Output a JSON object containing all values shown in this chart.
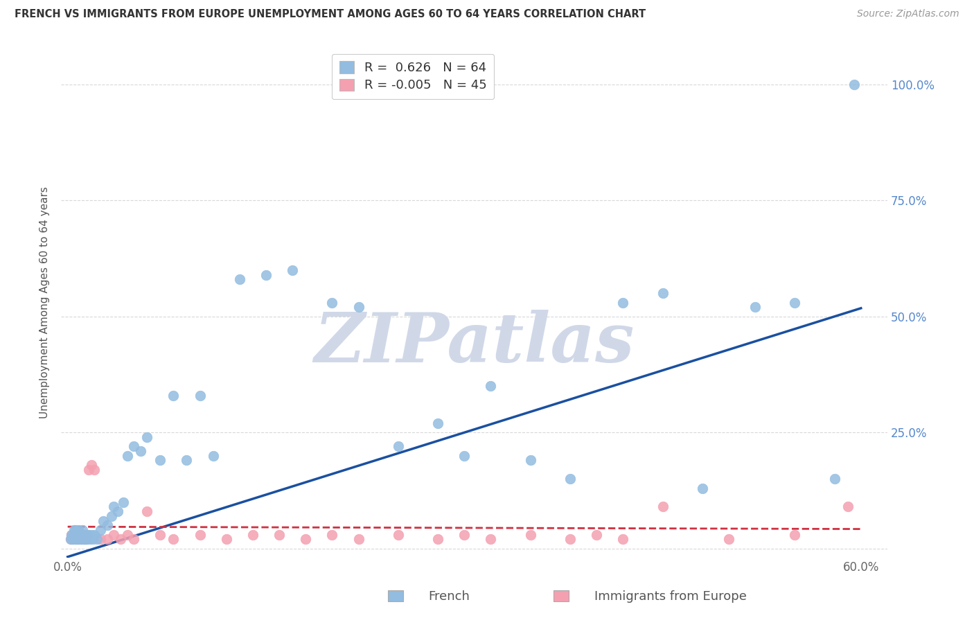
{
  "title": "FRENCH VS IMMIGRANTS FROM EUROPE UNEMPLOYMENT AMONG AGES 60 TO 64 YEARS CORRELATION CHART",
  "source": "Source: ZipAtlas.com",
  "ylabel": "Unemployment Among Ages 60 to 64 years",
  "xlim": [
    -0.005,
    0.62
  ],
  "ylim": [
    -0.02,
    1.08
  ],
  "french_R": 0.626,
  "french_N": 64,
  "immigrants_R": -0.005,
  "immigrants_N": 45,
  "french_color": "#92bce0",
  "immigrants_color": "#f4a0b0",
  "french_line_color": "#1a50a0",
  "immigrants_line_color": "#d03040",
  "background_color": "#ffffff",
  "grid_color": "#d8d8d8",
  "watermark_text": "ZIPatlas",
  "watermark_color": "#d0d8e8",
  "french_x": [
    0.002,
    0.003,
    0.004,
    0.005,
    0.005,
    0.006,
    0.006,
    0.007,
    0.007,
    0.008,
    0.008,
    0.009,
    0.009,
    0.01,
    0.01,
    0.011,
    0.011,
    0.012,
    0.012,
    0.013,
    0.013,
    0.014,
    0.015,
    0.015,
    0.016,
    0.017,
    0.018,
    0.019,
    0.02,
    0.022,
    0.025,
    0.027,
    0.03,
    0.033,
    0.035,
    0.038,
    0.042,
    0.045,
    0.05,
    0.055,
    0.06,
    0.07,
    0.08,
    0.09,
    0.1,
    0.11,
    0.13,
    0.15,
    0.17,
    0.2,
    0.22,
    0.25,
    0.28,
    0.3,
    0.32,
    0.35,
    0.38,
    0.42,
    0.45,
    0.48,
    0.52,
    0.55,
    0.58,
    0.595
  ],
  "french_y": [
    0.02,
    0.03,
    0.02,
    0.04,
    0.03,
    0.02,
    0.04,
    0.03,
    0.02,
    0.04,
    0.02,
    0.03,
    0.02,
    0.03,
    0.02,
    0.04,
    0.02,
    0.03,
    0.02,
    0.03,
    0.02,
    0.02,
    0.03,
    0.02,
    0.03,
    0.02,
    0.03,
    0.02,
    0.03,
    0.02,
    0.04,
    0.06,
    0.05,
    0.07,
    0.09,
    0.08,
    0.1,
    0.2,
    0.22,
    0.21,
    0.24,
    0.19,
    0.33,
    0.19,
    0.33,
    0.2,
    0.58,
    0.59,
    0.6,
    0.53,
    0.52,
    0.22,
    0.27,
    0.2,
    0.35,
    0.19,
    0.15,
    0.53,
    0.55,
    0.13,
    0.52,
    0.53,
    0.15,
    1.0
  ],
  "immigrants_x": [
    0.002,
    0.003,
    0.004,
    0.005,
    0.006,
    0.007,
    0.008,
    0.009,
    0.01,
    0.011,
    0.012,
    0.013,
    0.014,
    0.015,
    0.016,
    0.018,
    0.02,
    0.025,
    0.03,
    0.035,
    0.04,
    0.045,
    0.05,
    0.06,
    0.07,
    0.08,
    0.1,
    0.12,
    0.14,
    0.16,
    0.18,
    0.2,
    0.22,
    0.25,
    0.28,
    0.3,
    0.32,
    0.35,
    0.38,
    0.4,
    0.42,
    0.45,
    0.5,
    0.55,
    0.59
  ],
  "immigrants_y": [
    0.02,
    0.03,
    0.02,
    0.03,
    0.02,
    0.03,
    0.02,
    0.03,
    0.02,
    0.03,
    0.02,
    0.03,
    0.02,
    0.03,
    0.17,
    0.18,
    0.17,
    0.02,
    0.02,
    0.03,
    0.02,
    0.03,
    0.02,
    0.08,
    0.03,
    0.02,
    0.03,
    0.02,
    0.03,
    0.03,
    0.02,
    0.03,
    0.02,
    0.03,
    0.02,
    0.03,
    0.02,
    0.03,
    0.02,
    0.03,
    0.02,
    0.09,
    0.02,
    0.03,
    0.09
  ],
  "french_line_x": [
    0.0,
    0.6
  ],
  "french_line_y": [
    -0.018,
    0.518
  ],
  "immigrants_line_x": [
    0.0,
    0.6
  ],
  "immigrants_line_y": [
    0.047,
    0.042
  ]
}
